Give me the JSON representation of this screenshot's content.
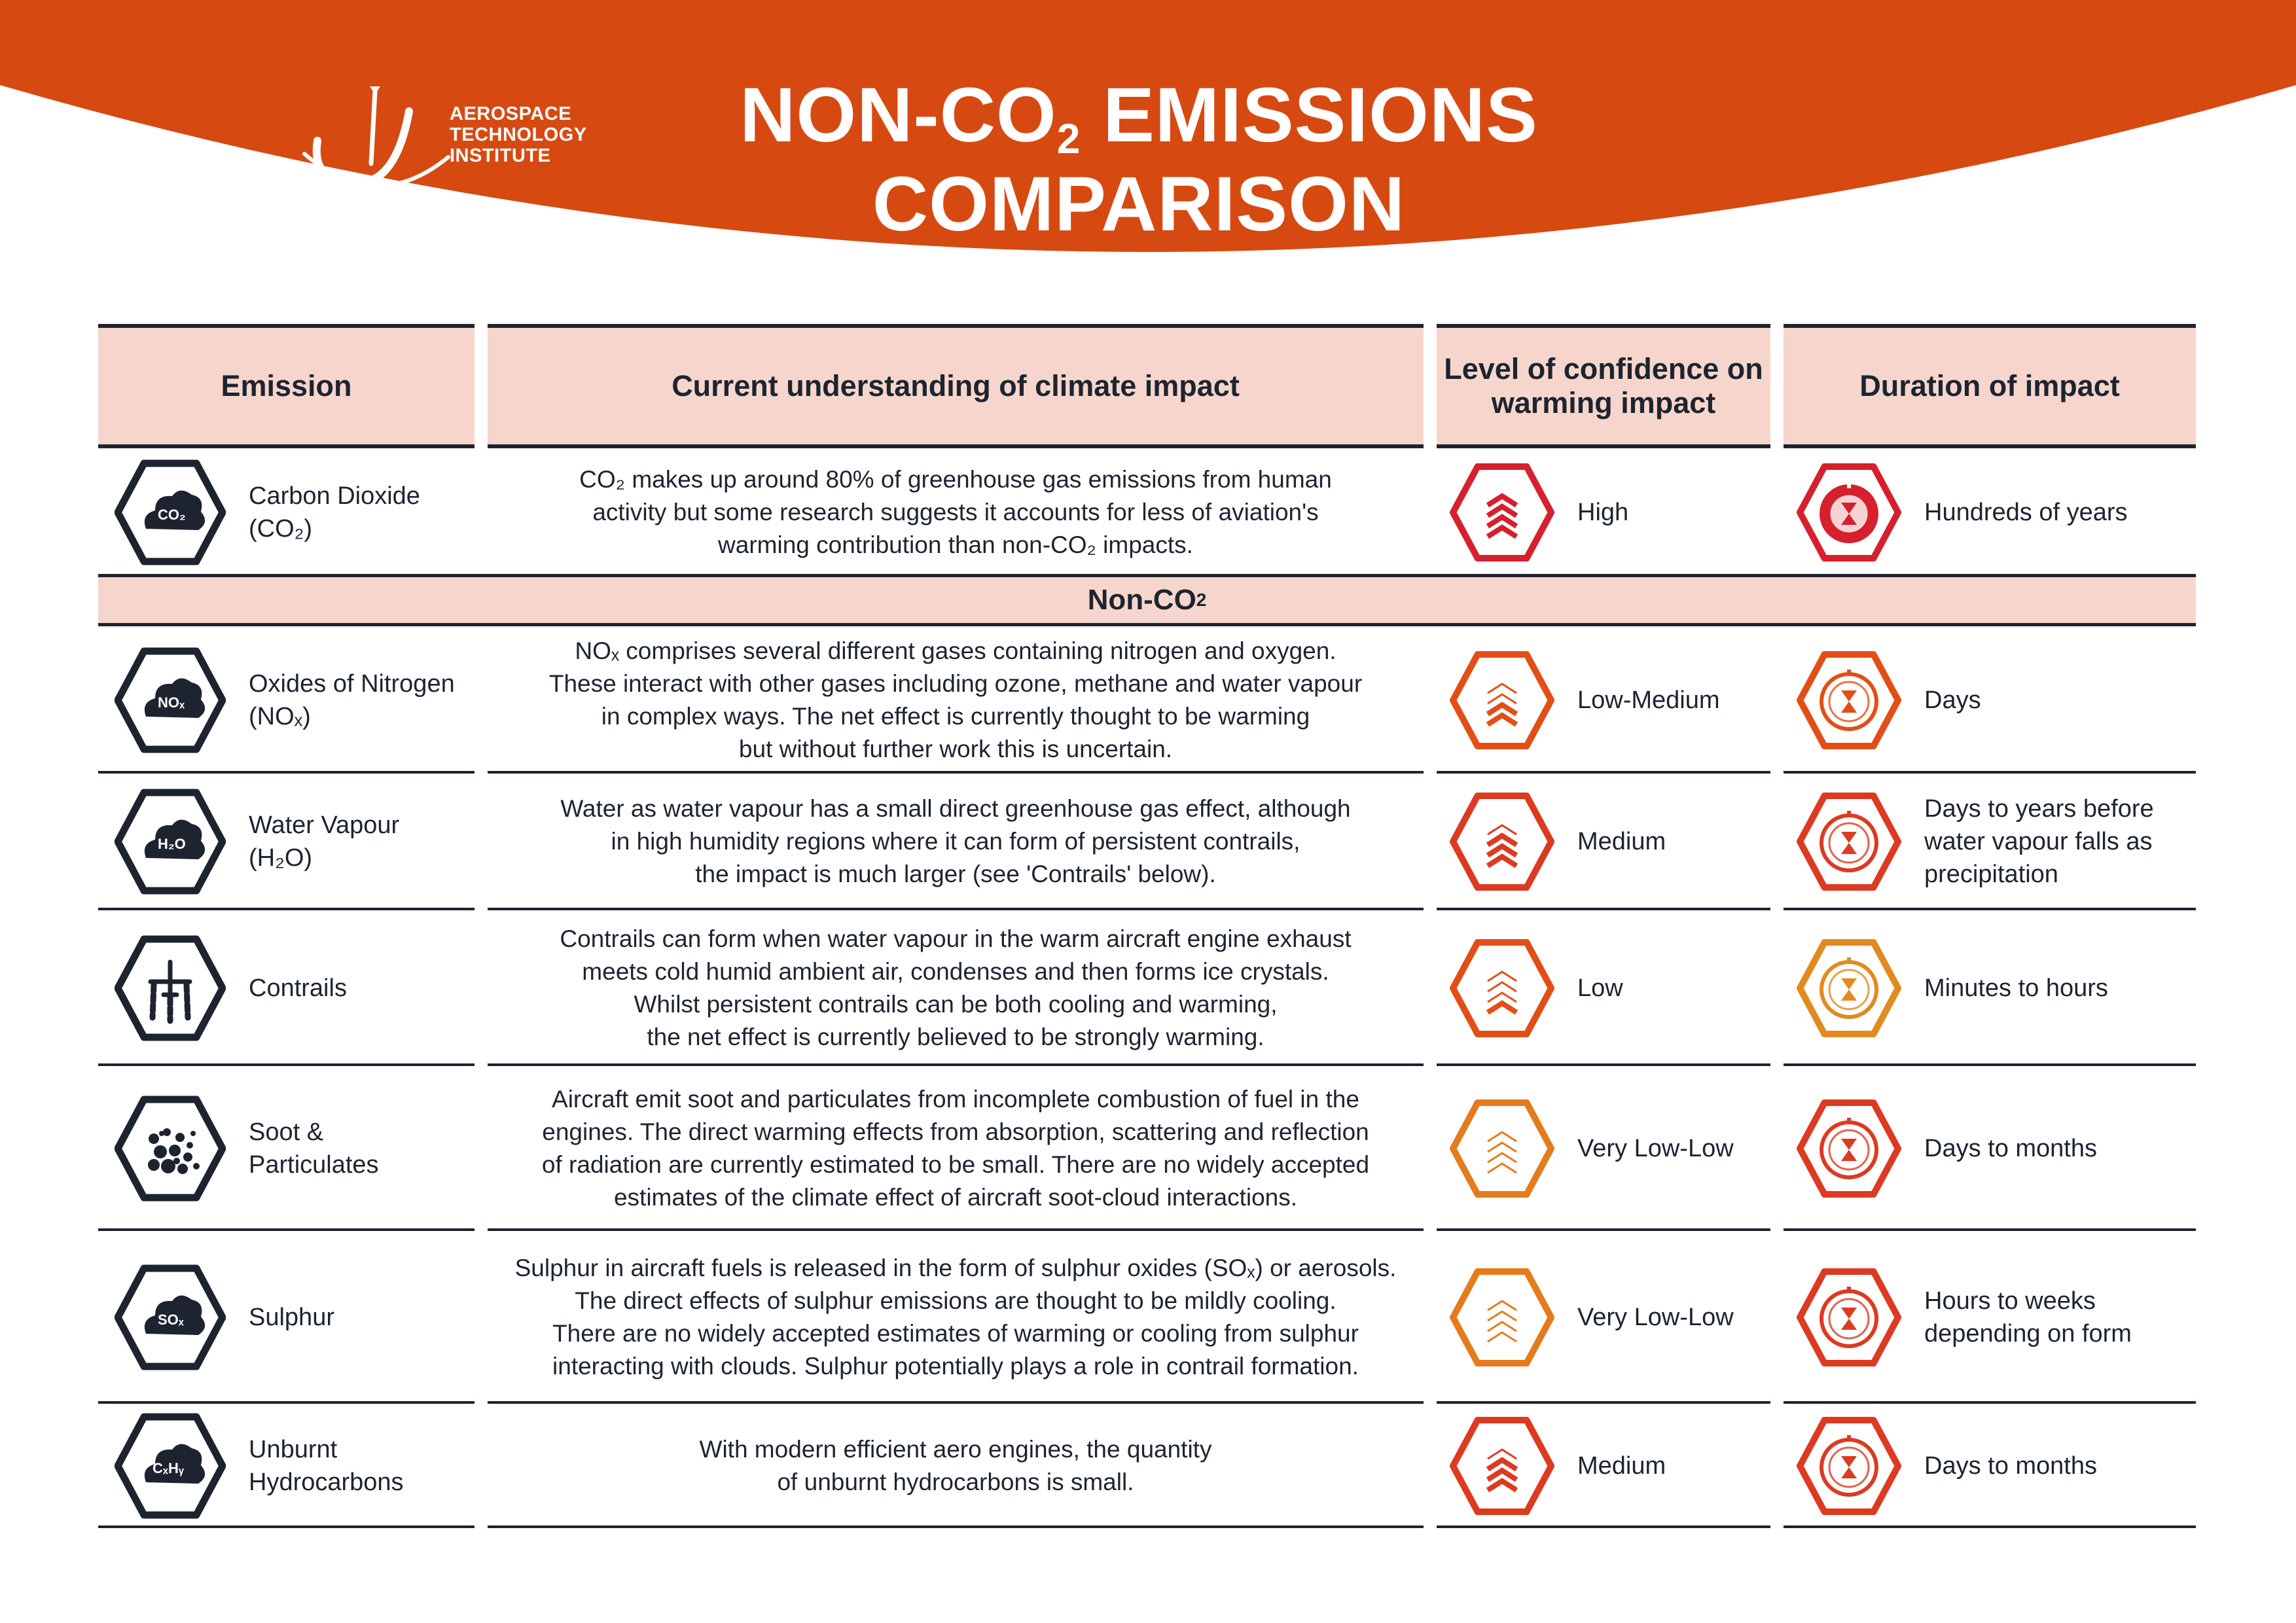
{
  "header": {
    "logo_lines": [
      "AEROSPACE",
      "TECHNOLOGY",
      "INSTITUTE"
    ],
    "title_line1_a": "NON-CO",
    "title_line1_sub": "2",
    "title_line1_b": " EMISSIONS",
    "title_line2": "COMPARISON"
  },
  "colors": {
    "brand_orange": "#d64a12",
    "header_fill": "#f6d6cc",
    "dark": "#1d2430",
    "high_red": "#d6202e",
    "medium_red": "#dc3a21",
    "low_orange": "#e24f16",
    "verylow_orange": "#e47b1c",
    "minutes_amber": "#e28a1f"
  },
  "table": {
    "headers": {
      "emission": "Emission",
      "understanding": "Current understanding of climate impact",
      "confidence": "Level of confidence on warming impact",
      "duration": "Duration of impact"
    },
    "non_co2_band": {
      "text": "Non-CO",
      "sub": "2"
    },
    "rows": [
      {
        "emission": "Carbon Dioxide (CO₂)",
        "icon": "co2-cloud-icon",
        "chem": "CO₂",
        "understanding": "CO₂ makes up around 80% of greenhouse gas emissions from human\nactivity but some research suggests it accounts for less of aviation's\nwarming contribution than non-CO₂ impacts.",
        "confidence": "High",
        "confidence_icon": "confidence-high-icon",
        "duration": "Hundreds of years",
        "duration_icon": "hourglass-icon"
      },
      {
        "emission": "Oxides of Nitrogen (NOₓ)",
        "icon": "nox-cloud-icon",
        "chem": "NOₓ",
        "understanding": "NOₓ comprises several different gases containing nitrogen and oxygen.\nThese interact with other gases including ozone, methane and water vapour\nin complex ways. The net effect is currently thought to be warming\nbut without further work this is uncertain.",
        "confidence": "Low-Medium",
        "confidence_icon": "confidence-low-medium-icon",
        "duration": "Days",
        "duration_icon": "hourglass-icon"
      },
      {
        "emission": "Water Vapour (H₂O)",
        "icon": "h2o-cloud-icon",
        "chem": "H₂O",
        "understanding": "Water as water vapour has a small direct greenhouse gas effect, although\nin high humidity regions where it can form of persistent contrails,\nthe impact is much larger (see 'Contrails' below).",
        "confidence": "Medium",
        "confidence_icon": "confidence-medium-icon",
        "duration": "Days to years before\nwater vapour falls as\nprecipitation",
        "duration_icon": "hourglass-icon"
      },
      {
        "emission": "Contrails",
        "icon": "contrails-plane-icon",
        "chem": "",
        "understanding": "Contrails can form when water vapour in the warm aircraft engine exhaust\nmeets cold humid ambient air, condenses and then forms ice crystals.\nWhilst persistent contrails can be both cooling and warming,\nthe net effect is currently believed to be strongly warming.",
        "confidence": "Low",
        "confidence_icon": "confidence-low-icon",
        "duration": "Minutes to hours",
        "duration_icon": "hourglass-icon"
      },
      {
        "emission": "Soot & Particulates",
        "icon": "soot-particles-icon",
        "chem": "",
        "understanding": "Aircraft emit soot and particulates from incomplete combustion of fuel in the\nengines. The direct warming effects from absorption, scattering and reflection\nof radiation are currently estimated to be small. There are no widely accepted\nestimates of the climate effect of aircraft soot-cloud interactions.",
        "confidence": "Very Low-Low",
        "confidence_icon": "confidence-very-low-low-icon",
        "duration": "Days to months",
        "duration_icon": "hourglass-icon"
      },
      {
        "emission": "Sulphur",
        "icon": "sox-cloud-icon",
        "chem": "SOₓ",
        "understanding": "Sulphur in aircraft fuels is released in the form of sulphur oxides (SOₓ) or aerosols.\nThe direct effects of sulphur emissions are thought to be mildly cooling.\nThere are no widely accepted estimates of warming or cooling from sulphur\ninteracting with clouds. Sulphur potentially plays a role in contrail formation.",
        "confidence": "Very Low-Low",
        "confidence_icon": "confidence-very-low-low-icon",
        "duration": "Hours to weeks\ndepending on form",
        "duration_icon": "hourglass-icon"
      },
      {
        "emission": "Unburnt Hydrocarbons",
        "icon": "hydrocarbon-cloud-icon",
        "chem": "CₓHᵧ",
        "understanding": "With modern efficient aero engines, the quantity\nof unburnt hydrocarbons is small.",
        "confidence": "Medium",
        "confidence_icon": "confidence-medium-icon",
        "duration": "Days to months",
        "duration_icon": "hourglass-icon"
      }
    ]
  }
}
